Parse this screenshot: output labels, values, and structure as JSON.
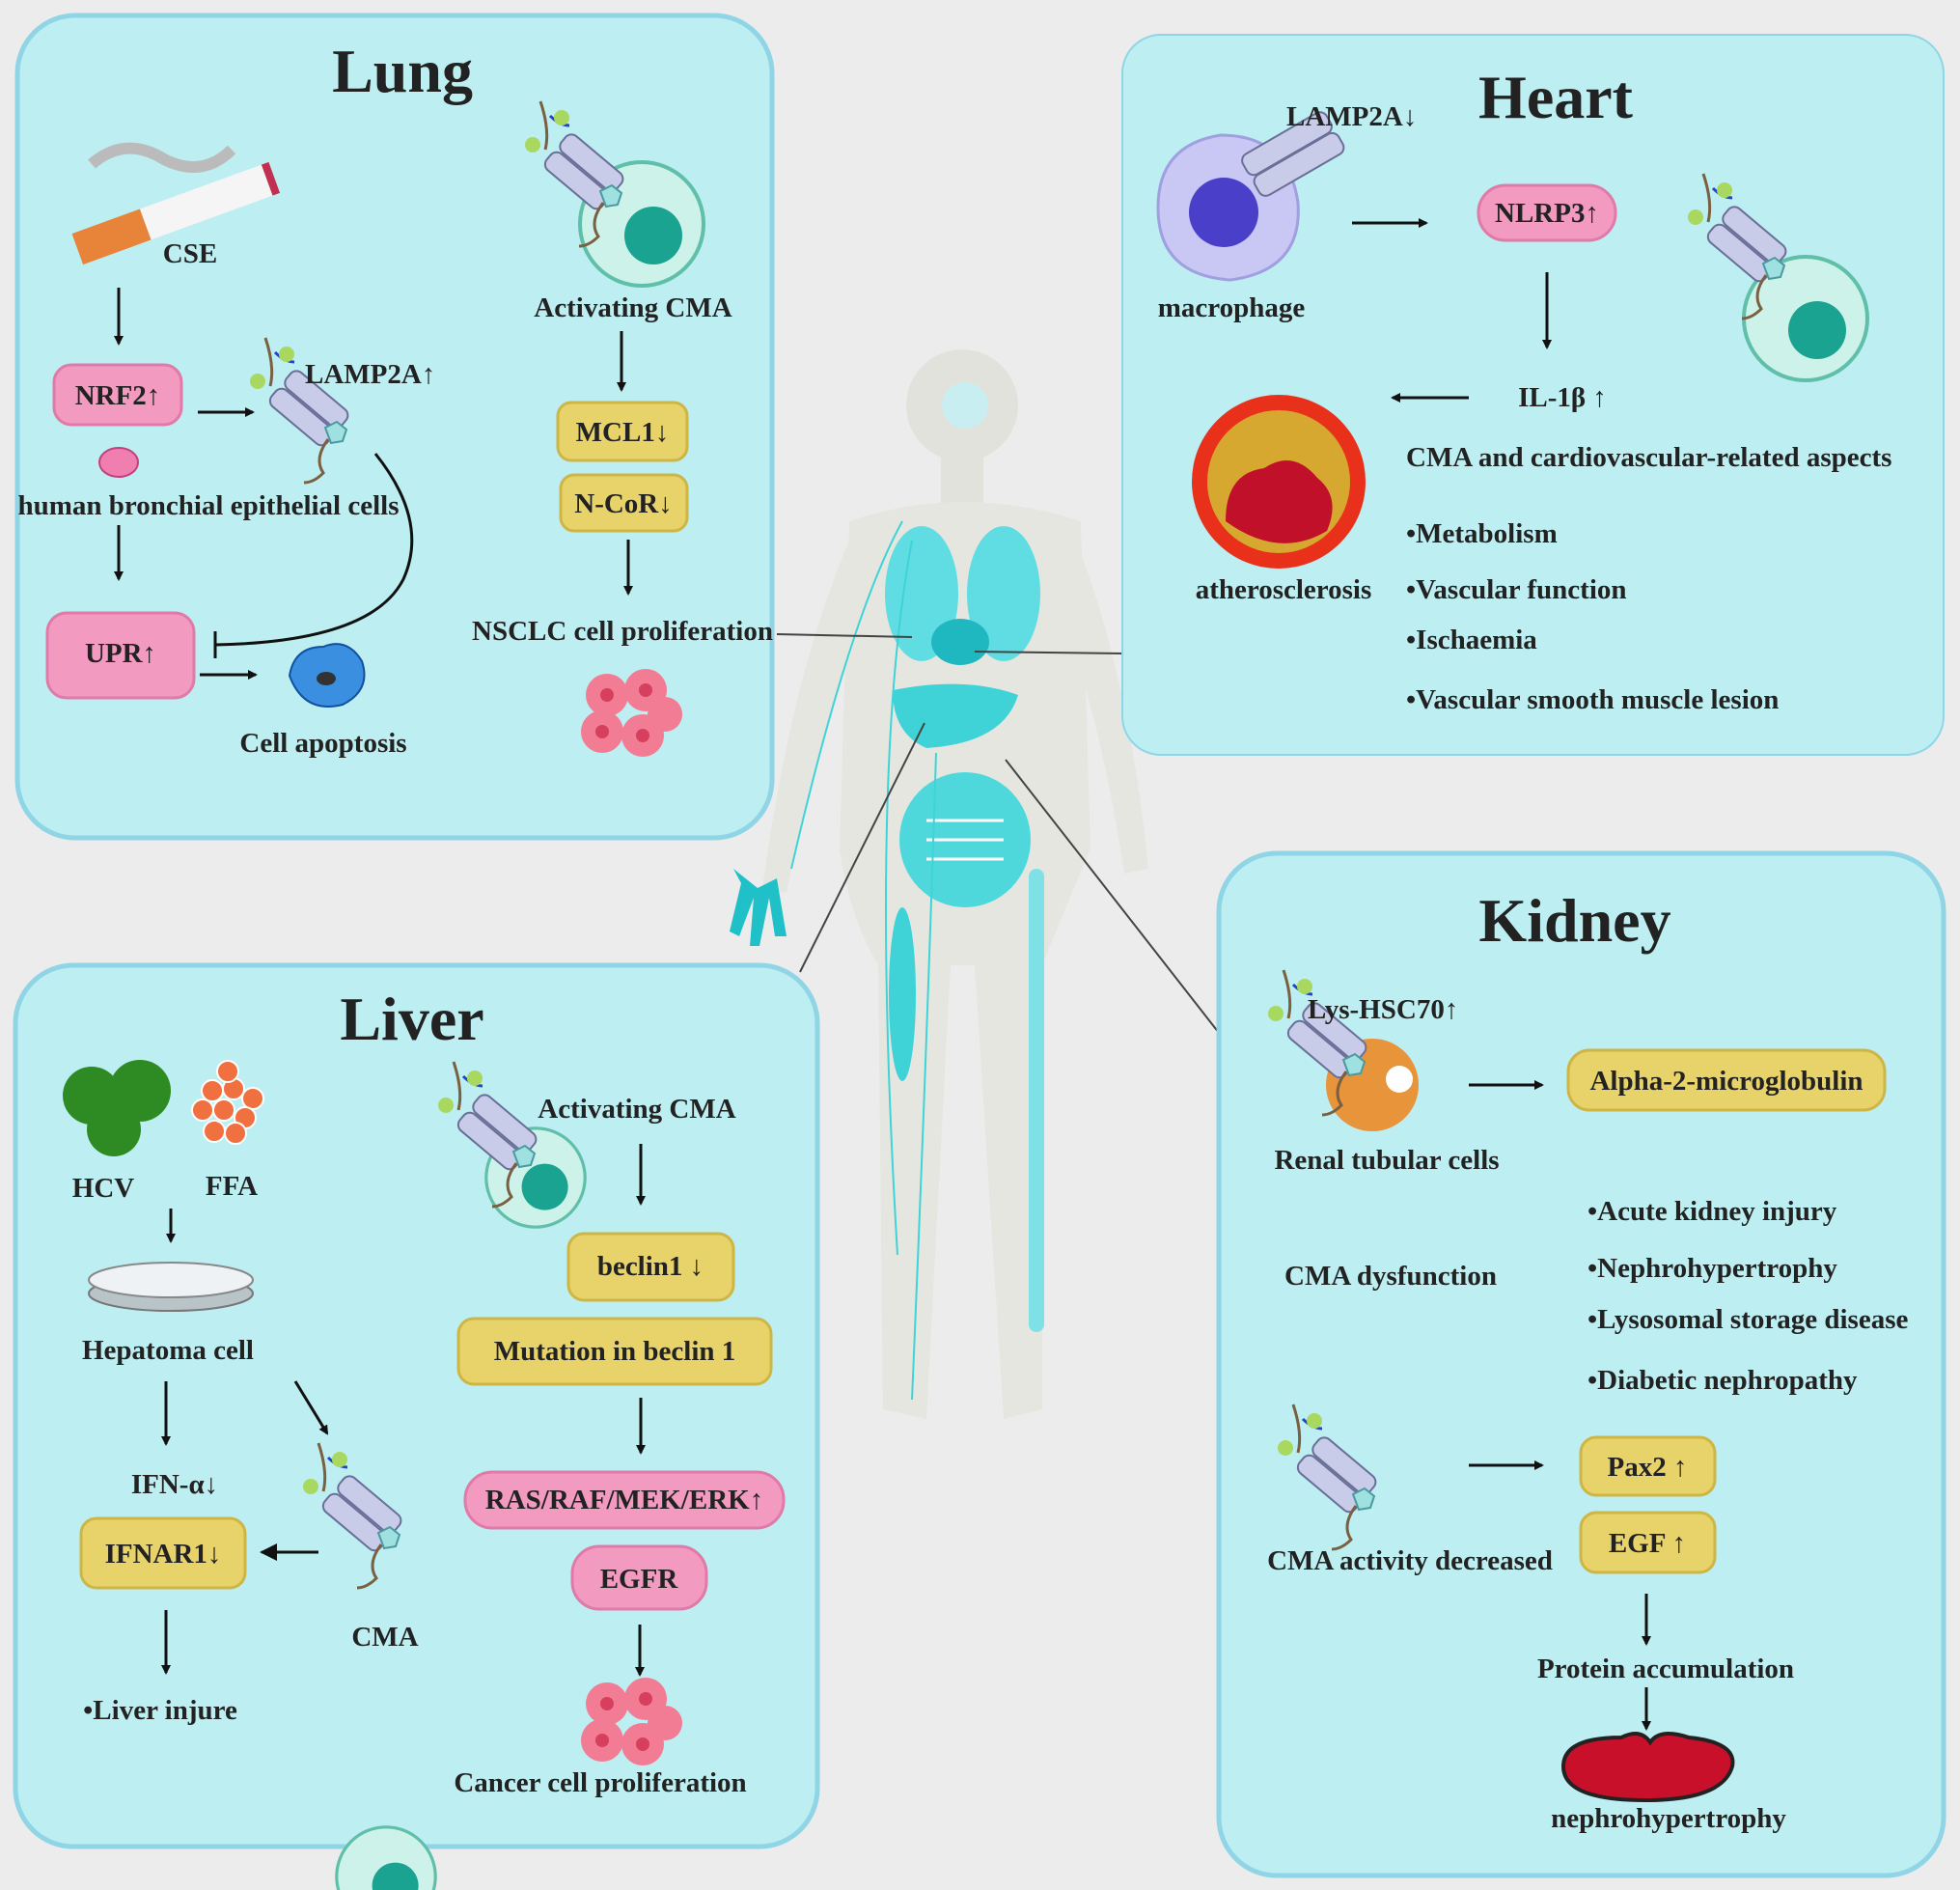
{
  "lung": {
    "title": "Lung",
    "cse": "CSE",
    "nrf2": "NRF2↑",
    "lamp2a": "LAMP2A↑",
    "hbec": "human bronchial epithelial cells",
    "upr": "UPR↑",
    "apoptosis": "Cell apoptosis",
    "activating": "Activating CMA",
    "mcl1": "MCL1↓",
    "ncor": "N-CoR↓",
    "nsclc": "NSCLC cell proliferation"
  },
  "heart": {
    "title": "Heart",
    "lamp2a": "LAMP2A↓",
    "macrophage": "macrophage",
    "nlrp3": "NLRP3↑",
    "il1b": "IL-1β ↑",
    "atherosclerosis": "atherosclerosis",
    "aspects_heading": "CMA and cardiovascular-related aspects",
    "aspects": [
      "•Metabolism",
      "•Vascular function",
      "•Ischaemia",
      "•Vascular smooth muscle lesion"
    ]
  },
  "kidney": {
    "title": "Kidney",
    "lys_hsc70": "Lys-HSC70↑",
    "renal": "Renal tubular cells",
    "alpha": "Alpha-2-microglobulin",
    "dysfunction": "CMA dysfunction",
    "diseases": [
      "•Acute kidney injury",
      "•Nephrohypertrophy",
      "•Lysosomal storage disease",
      "•Diabetic nephropathy"
    ],
    "decreased": "CMA activity decreased",
    "pax2": "Pax2 ↑",
    "egf": "EGF ↑",
    "protein": "Protein accumulation",
    "nephro": "nephrohypertrophy"
  },
  "liver": {
    "title": "Liver",
    "hcv": "HCV",
    "ffa": "FFA",
    "hepatoma": "Hepatoma cell",
    "ifna": "IFN-α↓",
    "ifnar1": "IFNAR1↓",
    "cma": "CMA",
    "injure": "•Liver  injure",
    "activating": "Activating CMA",
    "beclin1": "beclin1  ↓",
    "mutation": "Mutation in beclin 1",
    "ras": "RAS/RAF/MEK/ERK↑",
    "egfr": "EGFR",
    "cancer": "Cancer cell proliferation"
  },
  "colors": {
    "panel": "#bdeef1",
    "yellow_box": "#e8d36a",
    "pink_box": "#f29ac0",
    "organ_cyan": "#3fd3d8",
    "background": "#ececec"
  }
}
